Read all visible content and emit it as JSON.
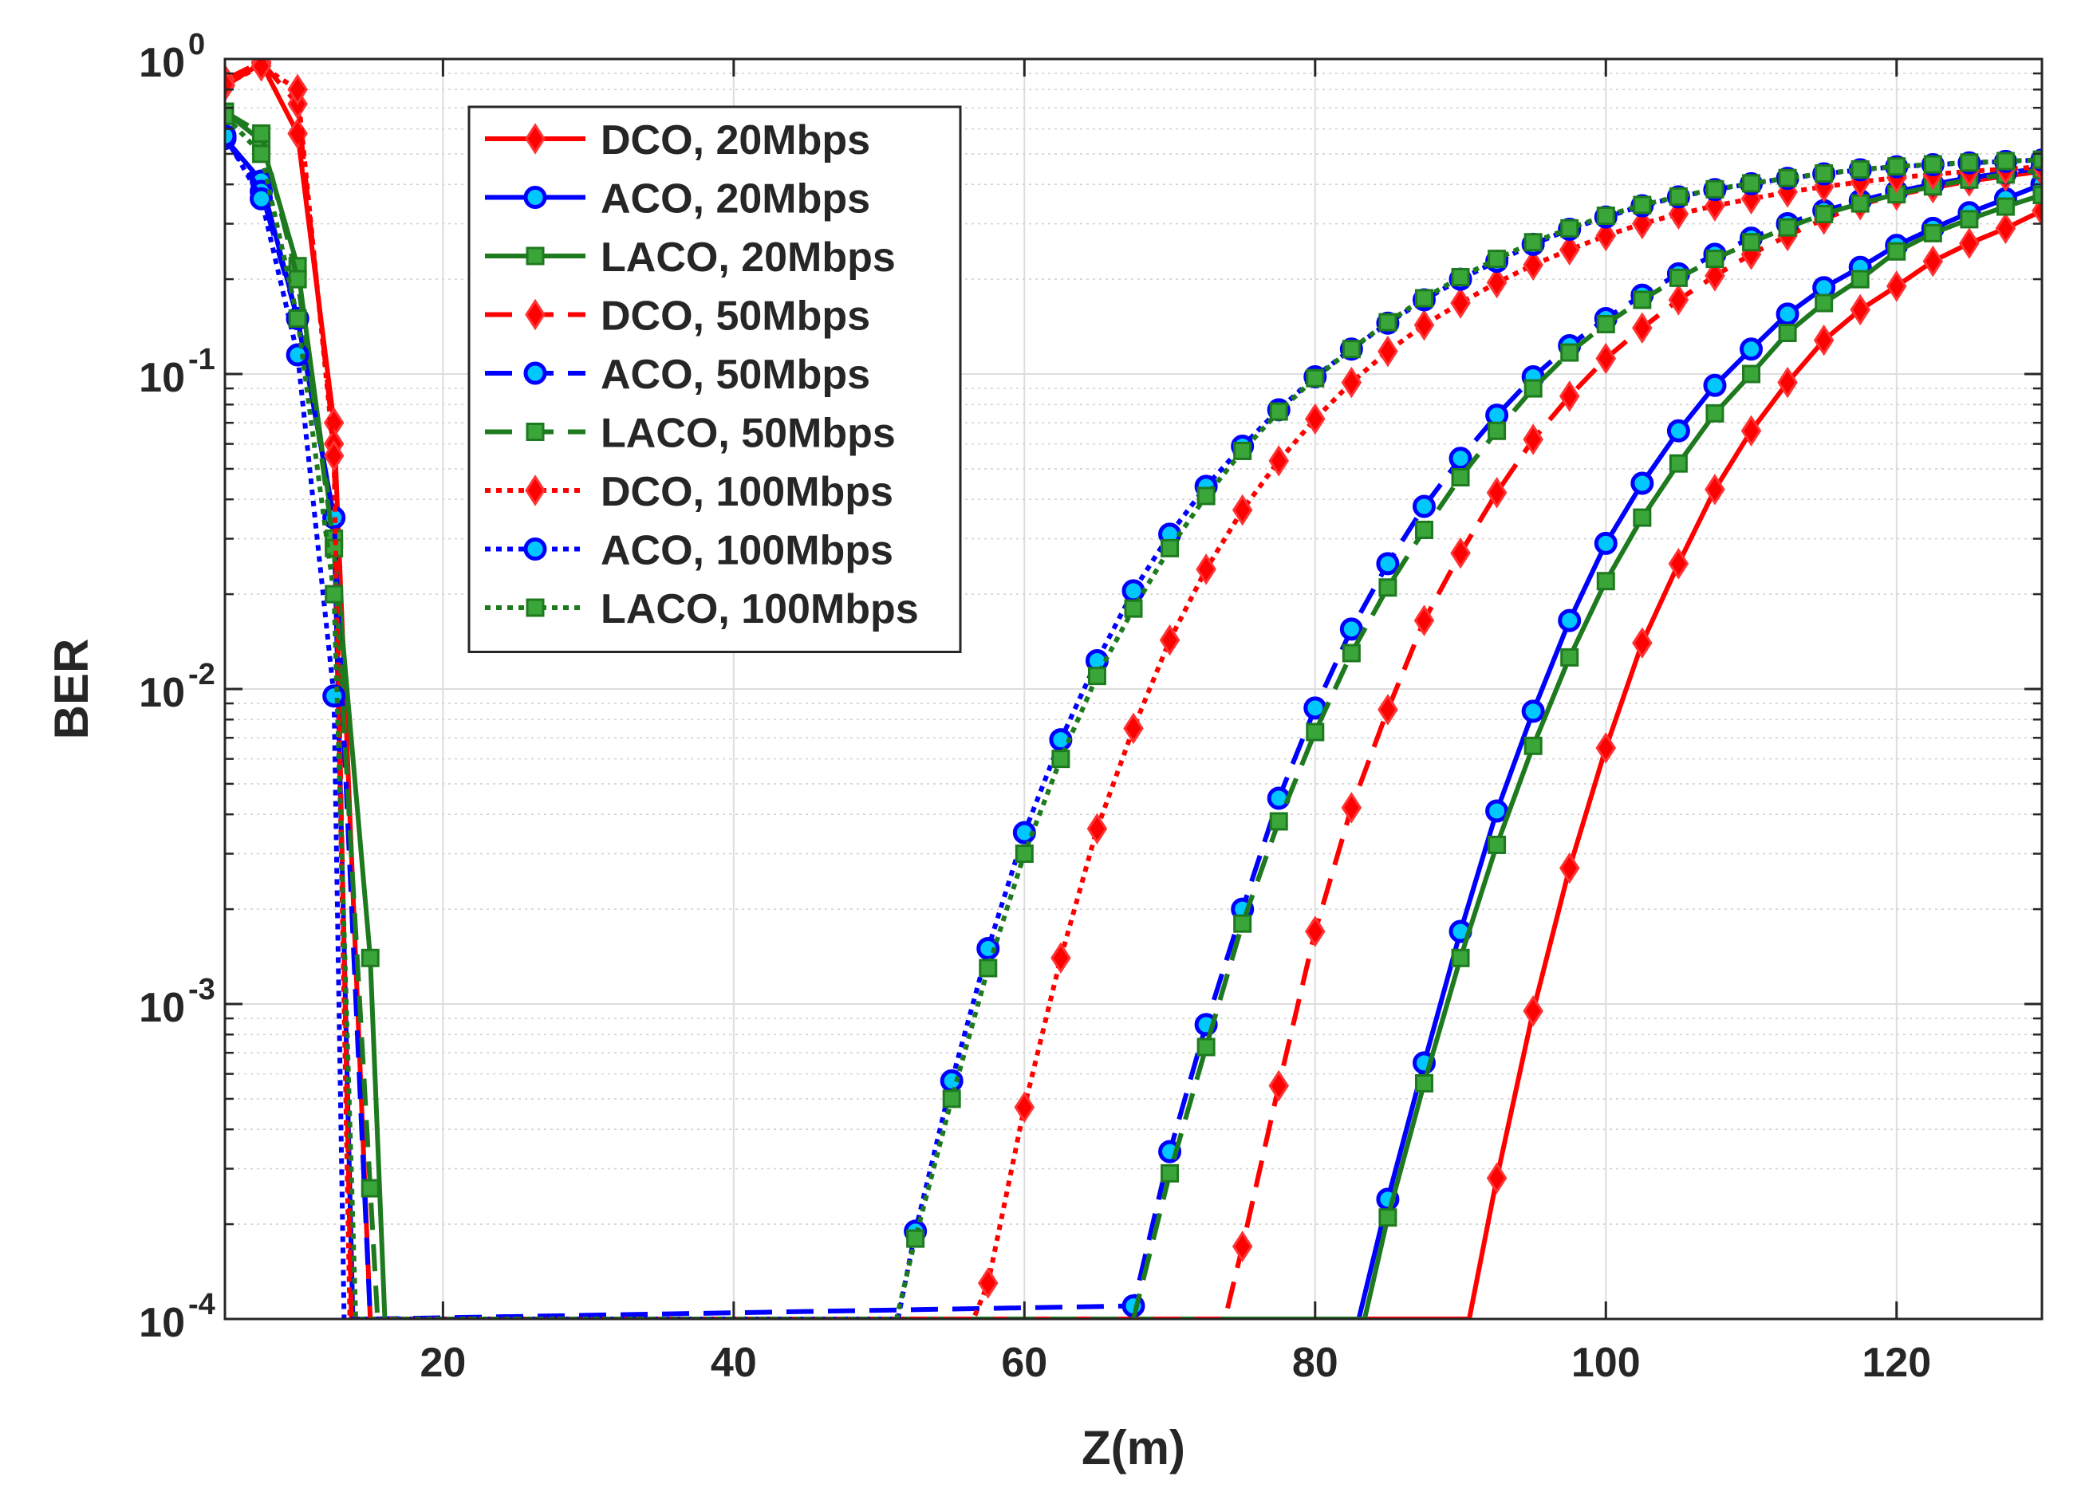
{
  "chart_data": {
    "type": "line",
    "title": "",
    "xlabel": "Z(m)",
    "ylabel": "BER",
    "xlim": [
      5,
      130
    ],
    "ylim": [
      0.0001,
      1
    ],
    "yscale": "log",
    "grid": true,
    "minor_grid_y": true,
    "legend_position": "top-left (inside axes)",
    "xticks": [
      20,
      40,
      60,
      80,
      100,
      120
    ],
    "xtick_labels": [
      "20",
      "40",
      "60",
      "80",
      "100",
      "120"
    ],
    "yticks": [
      0.0001,
      0.001,
      0.01,
      0.1,
      1
    ],
    "ytick_labels": [
      {
        "base": "10",
        "exp": "-4"
      },
      {
        "base": "10",
        "exp": "-3"
      },
      {
        "base": "10",
        "exp": "-2"
      },
      {
        "base": "10",
        "exp": "-1"
      },
      {
        "base": "10",
        "exp": "0"
      }
    ],
    "series": [
      {
        "name": "DCO, 20Mbps",
        "color": "#ff0000",
        "line_style": "solid",
        "marker": "diamond",
        "x": [
          5,
          7.5,
          10,
          12.5,
          15,
          90.6,
          92.5,
          95,
          97.5,
          100,
          102.5,
          105,
          107.5,
          110,
          112.5,
          115,
          117.5,
          120,
          122.5,
          125,
          127.5,
          130
        ],
        "y": [
          0.82,
          0.97,
          0.58,
          0.07,
          0.0001,
          0.0001,
          0.00028,
          0.00095,
          0.0027,
          0.0065,
          0.014,
          0.025,
          0.043,
          0.066,
          0.094,
          0.128,
          0.16,
          0.19,
          0.228,
          0.26,
          0.29,
          0.33
        ]
      },
      {
        "name": "ACO, 20Mbps",
        "color": "#0000ff",
        "line_style": "solid",
        "marker": "circle",
        "x": [
          5,
          7.5,
          10,
          12.5,
          13.8,
          83,
          85,
          87.5,
          90,
          92.5,
          95,
          97.5,
          100,
          102.5,
          105,
          107.5,
          110,
          112.5,
          115,
          117.5,
          120,
          122.5,
          125,
          127.5,
          130
        ],
        "y": [
          0.56,
          0.41,
          0.15,
          0.035,
          0.0001,
          0.0001,
          0.00024,
          0.00065,
          0.0017,
          0.0041,
          0.0085,
          0.0165,
          0.029,
          0.045,
          0.066,
          0.092,
          0.12,
          0.155,
          0.188,
          0.218,
          0.256,
          0.29,
          0.325,
          0.36,
          0.4
        ]
      },
      {
        "name": "LACO, 20Mbps",
        "color": "#1e7a1e",
        "line_style": "solid",
        "marker": "square",
        "x": [
          5,
          7.5,
          10,
          12.5,
          15,
          16,
          83.4,
          85,
          87.5,
          90,
          92.5,
          95,
          97.5,
          100,
          102.5,
          105,
          107.5,
          110,
          112.5,
          115,
          117.5,
          120,
          122.5,
          125,
          127.5,
          130
        ],
        "y": [
          0.68,
          0.55,
          0.22,
          0.03,
          0.0014,
          0.0001,
          0.0001,
          0.00021,
          0.00056,
          0.0014,
          0.0032,
          0.0066,
          0.0126,
          0.022,
          0.035,
          0.052,
          0.075,
          0.1,
          0.135,
          0.168,
          0.2,
          0.245,
          0.28,
          0.31,
          0.34,
          0.37
        ]
      },
      {
        "name": "DCO, 50Mbps",
        "color": "#ff0000",
        "line_style": "dashed",
        "marker": "diamond",
        "x": [
          5,
          7.5,
          10,
          12.5,
          13.7,
          73.8,
          75,
          77.5,
          80,
          82.5,
          85,
          87.5,
          90,
          92.5,
          95,
          97.5,
          100,
          102.5,
          105,
          107.5,
          110,
          112.5,
          115,
          117.5,
          120,
          122.5,
          125,
          127.5,
          130
        ],
        "y": [
          0.86,
          0.98,
          0.72,
          0.06,
          0.0001,
          0.0001,
          0.00017,
          0.00055,
          0.0017,
          0.0042,
          0.0086,
          0.0165,
          0.027,
          0.042,
          0.062,
          0.085,
          0.112,
          0.14,
          0.172,
          0.205,
          0.24,
          0.275,
          0.31,
          0.345,
          0.37,
          0.39,
          0.41,
          0.425,
          0.44
        ]
      },
      {
        "name": "ACO, 50Mbps",
        "color": "#0000ff",
        "line_style": "dashed",
        "marker": "circle",
        "x": [
          5,
          7.5,
          10,
          12.5,
          15,
          67.5,
          70,
          72.5,
          75,
          77.5,
          80,
          82.5,
          85,
          87.5,
          90,
          92.5,
          95,
          97.5,
          100,
          102.5,
          105,
          107.5,
          110,
          112.5,
          115,
          117.5,
          120,
          122.5,
          125,
          127.5,
          130
        ],
        "y": [
          0.56,
          0.38,
          0.15,
          0.035,
          0.0001,
          0.00011,
          0.00034,
          0.00086,
          0.002,
          0.0045,
          0.0087,
          0.0155,
          0.025,
          0.038,
          0.054,
          0.074,
          0.098,
          0.123,
          0.15,
          0.178,
          0.208,
          0.24,
          0.27,
          0.3,
          0.33,
          0.355,
          0.38,
          0.4,
          0.42,
          0.435,
          0.45
        ]
      },
      {
        "name": "LACO, 50Mbps",
        "color": "#1e7a1e",
        "line_style": "dashed",
        "marker": "square",
        "x": [
          5,
          7.5,
          10,
          12.5,
          15,
          15.5,
          67.5,
          70,
          72.5,
          75,
          77.5,
          80,
          82.5,
          85,
          87.5,
          90,
          92.5,
          95,
          97.5,
          100,
          102.5,
          105,
          107.5,
          110,
          112.5,
          115,
          117.5,
          120,
          122.5,
          125,
          127.5,
          130
        ],
        "y": [
          0.68,
          0.58,
          0.2,
          0.028,
          0.00026,
          0.0001,
          0.0001,
          0.00029,
          0.00073,
          0.0018,
          0.0038,
          0.0073,
          0.013,
          0.021,
          0.032,
          0.047,
          0.066,
          0.09,
          0.117,
          0.144,
          0.172,
          0.202,
          0.232,
          0.262,
          0.292,
          0.322,
          0.348,
          0.372,
          0.394,
          0.414,
          0.43,
          0.445
        ]
      },
      {
        "name": "DCO, 100Mbps",
        "color": "#ff0000",
        "line_style": "dotted",
        "marker": "diamond",
        "x": [
          5,
          7.5,
          10,
          12.5,
          13.6,
          56.5,
          57.5,
          60,
          62.5,
          65,
          67.5,
          70,
          72.5,
          75,
          77.5,
          80,
          82.5,
          85,
          87.5,
          90,
          92.5,
          95,
          97.5,
          100,
          102.5,
          105,
          107.5,
          110,
          112.5,
          115,
          117.5,
          120,
          122.5,
          125,
          127.5,
          130
        ],
        "y": [
          0.83,
          0.95,
          0.8,
          0.055,
          0.0001,
          0.0001,
          0.00013,
          0.00047,
          0.0014,
          0.0036,
          0.0075,
          0.0143,
          0.024,
          0.037,
          0.053,
          0.072,
          0.094,
          0.118,
          0.143,
          0.168,
          0.195,
          0.222,
          0.248,
          0.275,
          0.3,
          0.322,
          0.342,
          0.36,
          0.378,
          0.393,
          0.407,
          0.42,
          0.43,
          0.44,
          0.447,
          0.455
        ]
      },
      {
        "name": "ACO, 100Mbps",
        "color": "#0000ff",
        "line_style": "dotted",
        "marker": "circle",
        "x": [
          5,
          7.5,
          10,
          12.5,
          13.2,
          51.3,
          52.5,
          55,
          57.5,
          60,
          62.5,
          65,
          67.5,
          70,
          72.5,
          75,
          77.5,
          80,
          82.5,
          85,
          87.5,
          90,
          92.5,
          95,
          97.5,
          100,
          102.5,
          105,
          107.5,
          110,
          112.5,
          115,
          117.5,
          120,
          122.5,
          125,
          127.5,
          130
        ],
        "y": [
          0.57,
          0.36,
          0.115,
          0.0095,
          0.0001,
          0.0001,
          0.00019,
          0.00057,
          0.0015,
          0.0035,
          0.0069,
          0.0123,
          0.0205,
          0.031,
          0.044,
          0.059,
          0.077,
          0.098,
          0.12,
          0.145,
          0.172,
          0.2,
          0.228,
          0.258,
          0.288,
          0.315,
          0.342,
          0.365,
          0.385,
          0.402,
          0.418,
          0.432,
          0.445,
          0.455,
          0.462,
          0.468,
          0.473,
          0.478
        ]
      },
      {
        "name": "LACO, 100Mbps",
        "color": "#1e7a1e",
        "line_style": "dotted",
        "marker": "square",
        "x": [
          5,
          7.5,
          10,
          12.5,
          14,
          51.2,
          52.5,
          55,
          57.5,
          60,
          62.5,
          65,
          67.5,
          70,
          72.5,
          75,
          77.5,
          80,
          82.5,
          85,
          87.5,
          90,
          92.5,
          95,
          97.5,
          100,
          102.5,
          105,
          107.5,
          110,
          112.5,
          115,
          117.5,
          120,
          122.5,
          125,
          127.5,
          130
        ],
        "y": [
          0.66,
          0.5,
          0.15,
          0.02,
          0.0001,
          0.0001,
          0.00018,
          0.0005,
          0.0013,
          0.003,
          0.006,
          0.011,
          0.018,
          0.028,
          0.041,
          0.057,
          0.076,
          0.097,
          0.12,
          0.146,
          0.174,
          0.203,
          0.232,
          0.262,
          0.29,
          0.318,
          0.344,
          0.366,
          0.386,
          0.403,
          0.419,
          0.433,
          0.446,
          0.456,
          0.463,
          0.469,
          0.474,
          0.479
        ]
      }
    ]
  }
}
